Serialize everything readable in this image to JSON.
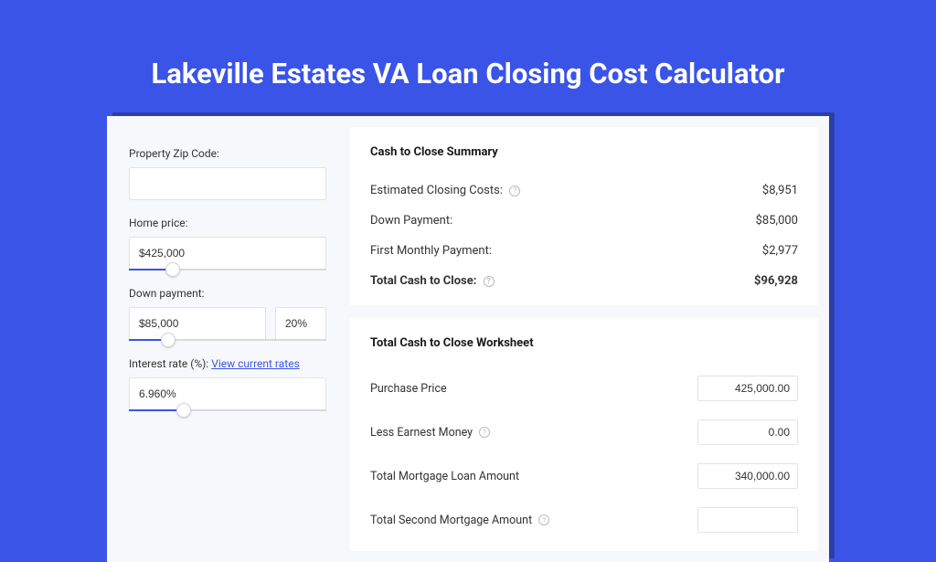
{
  "title": "Lakeville Estates VA Loan Closing Cost Calculator",
  "colors": {
    "brand": "#3a54e8",
    "bg": "#f7f8fb",
    "card": "#ffffff",
    "border": "#e3e3e3",
    "shadow": "#2c3ea8"
  },
  "form": {
    "zip": {
      "label": "Property Zip Code:",
      "value": ""
    },
    "price": {
      "label": "Home price:",
      "value": "$425,000",
      "slider_pct": 22
    },
    "down": {
      "label": "Down payment:",
      "amount": "$85,000",
      "pct": "20%",
      "slider_pct": 20
    },
    "rate": {
      "label": "Interest rate (%):",
      "link": "View current rates",
      "value": "6.960%",
      "slider_pct": 28
    }
  },
  "summary": {
    "heading": "Cash to Close Summary",
    "rows": [
      {
        "label": "Estimated Closing Costs:",
        "help": true,
        "value": "$8,951",
        "bold": false
      },
      {
        "label": "Down Payment:",
        "help": false,
        "value": "$85,000",
        "bold": false
      },
      {
        "label": "First Monthly Payment:",
        "help": false,
        "value": "$2,977",
        "bold": false
      },
      {
        "label": "Total Cash to Close:",
        "help": true,
        "value": "$96,928",
        "bold": true
      }
    ]
  },
  "worksheet": {
    "heading": "Total Cash to Close Worksheet",
    "rows": [
      {
        "label": "Purchase Price",
        "help": false,
        "value": "425,000.00"
      },
      {
        "label": "Less Earnest Money",
        "help": true,
        "value": "0.00"
      },
      {
        "label": "Total Mortgage Loan Amount",
        "help": false,
        "value": "340,000.00"
      },
      {
        "label": "Total Second Mortgage Amount",
        "help": true,
        "value": ""
      }
    ]
  }
}
